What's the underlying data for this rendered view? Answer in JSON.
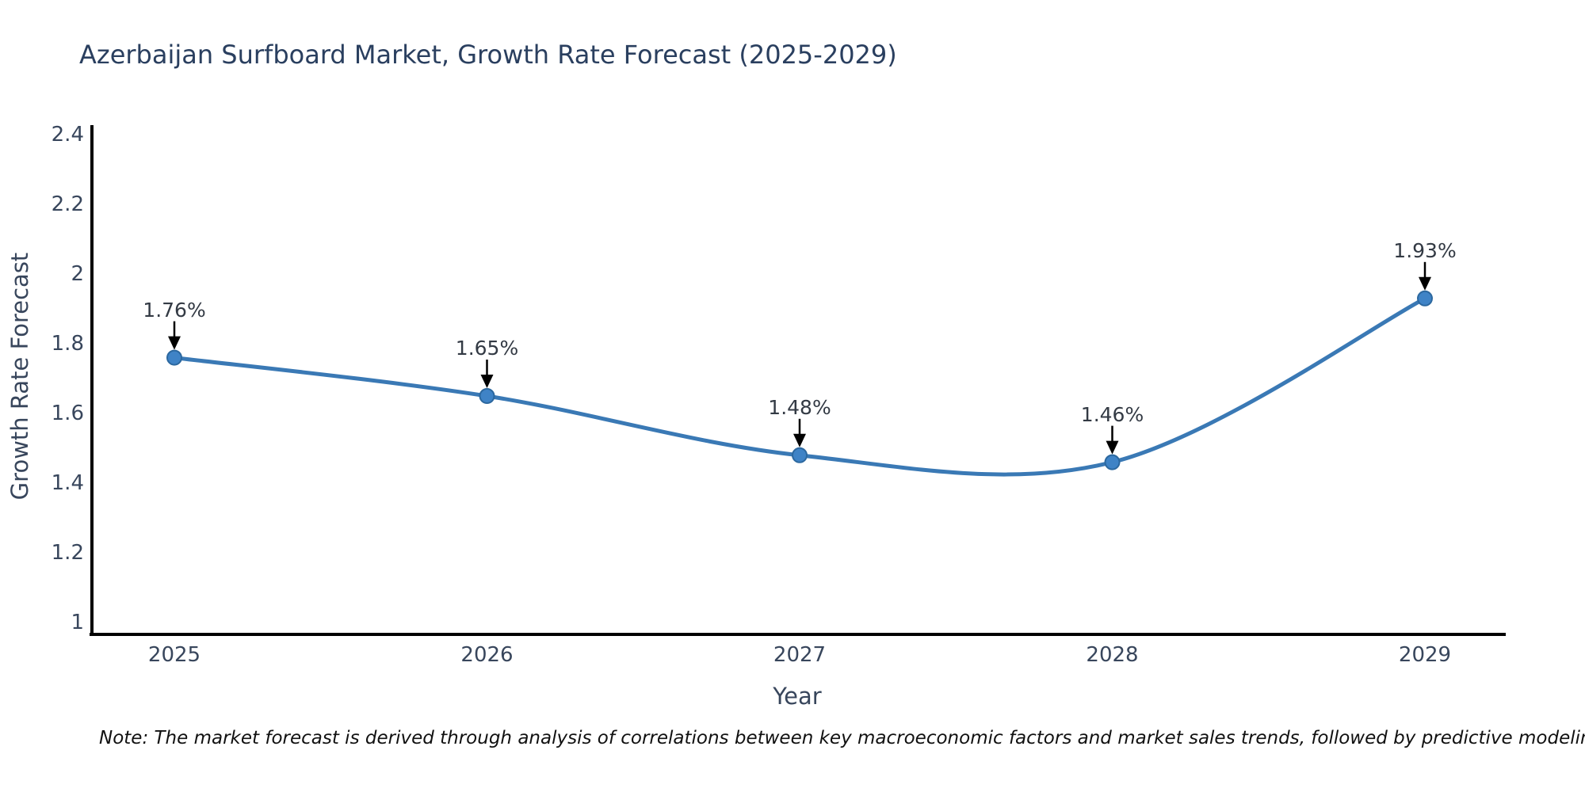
{
  "title": "Azerbaijan Surfboard Market, Growth Rate Forecast (2025-2029)",
  "note": "Note: The market forecast is derived through analysis of correlations between key macroeconomic factors and market sales trends, followed by predictive modeling to project future sales",
  "chart_data": {
    "type": "line",
    "title": "Azerbaijan Surfboard Market, Growth Rate Forecast (2025-2029)",
    "xlabel": "Year",
    "ylabel": "Growth Rate Forecast",
    "x": [
      2025,
      2026,
      2027,
      2028,
      2029
    ],
    "series": [
      {
        "name": "Growth Rate Forecast",
        "values": [
          1.76,
          1.65,
          1.48,
          1.46,
          1.93
        ],
        "point_labels": [
          "1.76%",
          "1.65%",
          "1.48%",
          "1.46%",
          "1.93%"
        ]
      }
    ],
    "line_shape": "spline",
    "grid": false,
    "legend": "none",
    "xlim": [
      2024.73,
      2029.26
    ],
    "ylim": [
      0.97,
      2.43
    ],
    "yticks": [
      1,
      1.2,
      1.4,
      1.6,
      1.8,
      2,
      2.2,
      2.4
    ],
    "ytick_labels": [
      "1",
      "1.2",
      "1.4",
      "1.6",
      "1.8",
      "2",
      "2.2",
      "2.4"
    ],
    "xtick_labels": [
      "2025",
      "2026",
      "2027",
      "2028",
      "2029"
    ],
    "colors": {
      "line": "#3a79b5",
      "marker_fill": "#3f83c6",
      "marker_edge": "#2c689f",
      "axis": "#000000",
      "arrow": "#000000",
      "title_text": "#2a3f5f",
      "tick_text": "#38465c",
      "annotation_text": "#333a44"
    }
  }
}
